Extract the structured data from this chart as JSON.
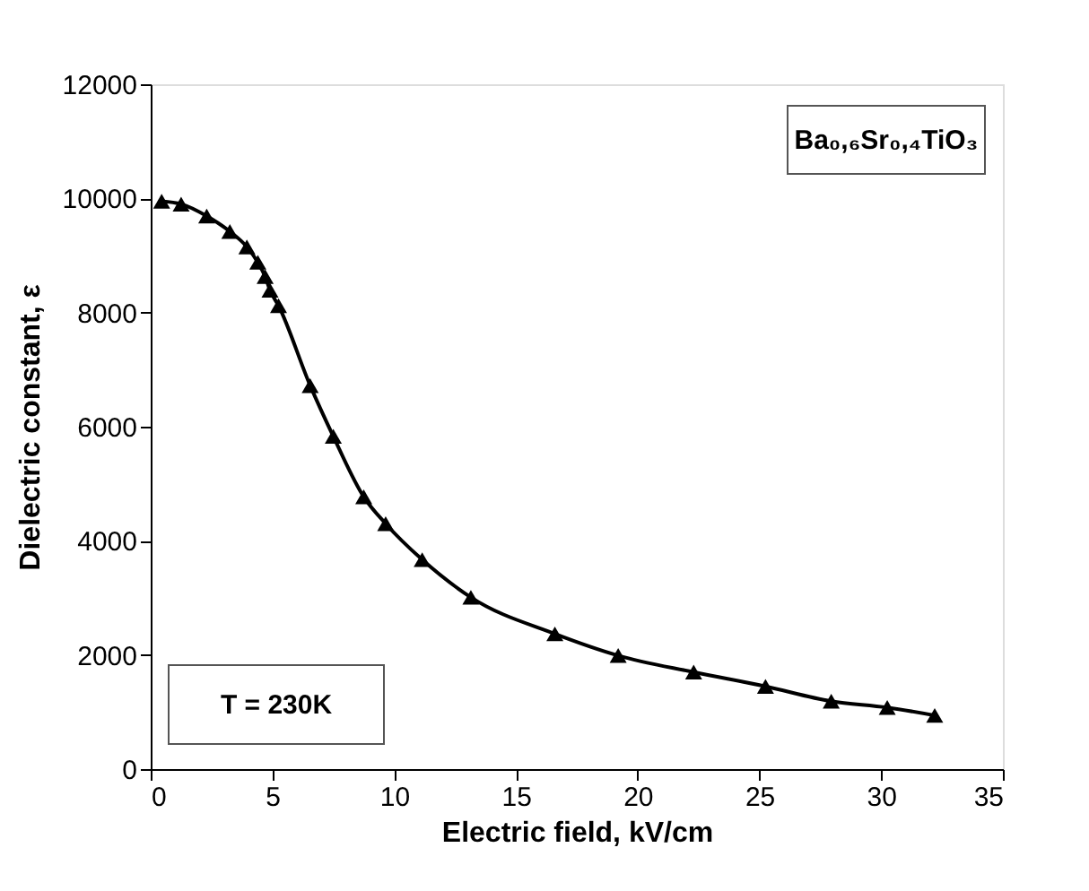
{
  "chart_data": {
    "type": "line",
    "xlabel": "Electric field, kV/cm",
    "ylabel": "Dielectric constant, ε",
    "x": [
      0.45,
      1.25,
      2.3,
      3.25,
      3.95,
      4.4,
      4.7,
      4.9,
      5.25,
      6.55,
      7.5,
      8.75,
      9.65,
      11.15,
      13.15,
      16.6,
      19.2,
      22.3,
      25.25,
      27.95,
      30.25,
      32.2
    ],
    "series": [
      {
        "color": "#000000",
        "values": [
          9950,
          9900,
          9690,
          9420,
          9150,
          8880,
          8630,
          8390,
          8120,
          6720,
          5830,
          4770,
          4300,
          3670,
          3010,
          2370,
          1990,
          1700,
          1450,
          1190,
          1080,
          940
        ]
      }
    ],
    "xlim": [
      0,
      35
    ],
    "xticks": [
      0,
      5,
      10,
      15,
      20,
      25,
      30,
      35
    ],
    "ylim": [
      0,
      12000
    ],
    "yticks": [
      0,
      2000,
      4000,
      6000,
      8000,
      10000,
      12000
    ],
    "marker": "triangle",
    "line_style": "solid",
    "grid": false,
    "annotations": [
      "Ba₀,₆Sr₀,₄TiO₃",
      "T = 230K"
    ]
  }
}
